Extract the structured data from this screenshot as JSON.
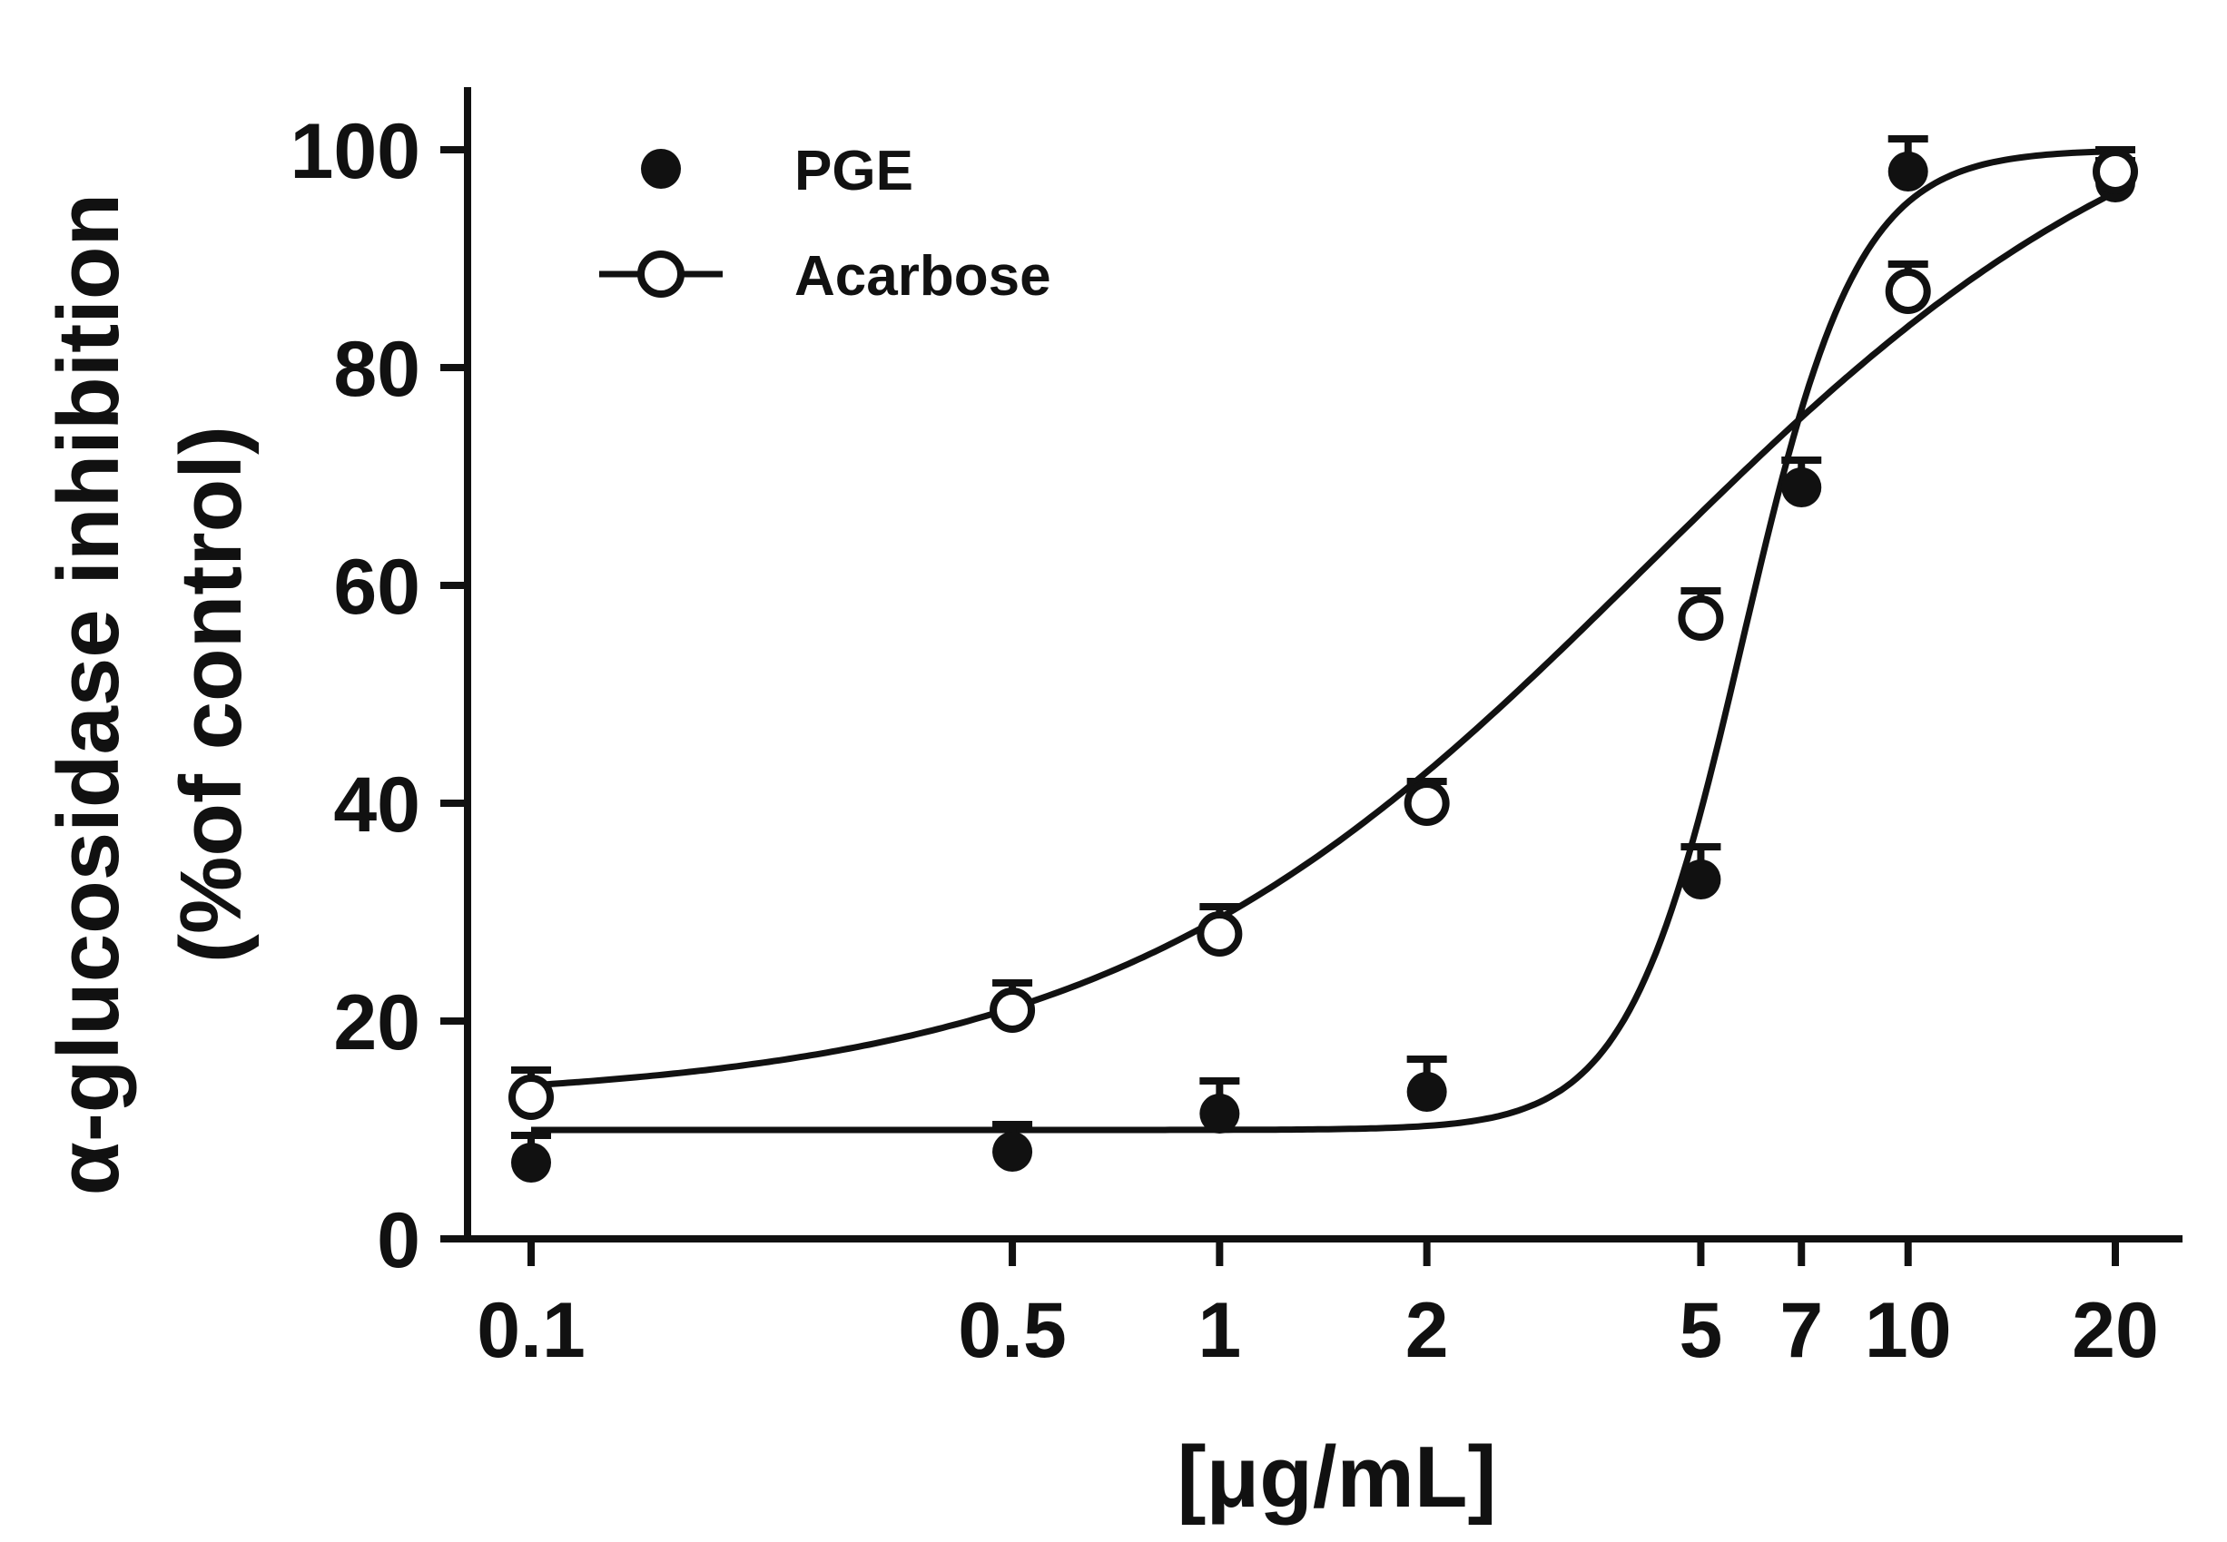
{
  "chart_data": {
    "type": "scatter",
    "x_scale": "log",
    "x_ticks": [
      0.1,
      0.5,
      1,
      2,
      5,
      7,
      10,
      20
    ],
    "x_tick_labels": [
      "0.1",
      "0.5",
      "1",
      "2",
      "5",
      "7",
      "10",
      "20"
    ],
    "y_ticks": [
      0,
      20,
      40,
      60,
      80,
      100
    ],
    "y_tick_labels": [
      "0",
      "20",
      "40",
      "60",
      "80",
      "100"
    ],
    "ylim": [
      0,
      100
    ],
    "xlabel": "[μg/mL]",
    "ylabel_line1": "α-glucosidase inhibition",
    "ylabel_line2": "(%of control)",
    "legend_position": "top-left",
    "grid": false,
    "series": [
      {
        "name": "PGE",
        "marker": "filled-circle",
        "color": "#111111",
        "x": [
          0.1,
          0.5,
          1,
          2,
          5,
          7,
          10,
          20
        ],
        "y": [
          7,
          8,
          11.5,
          13.5,
          33,
          69,
          98,
          97
        ],
        "error": [
          2.5,
          2.5,
          3,
          3,
          3,
          2.5,
          3,
          2
        ],
        "fit": {
          "bottom": 10,
          "top": 100,
          "logEC50": 0.76,
          "hill": 5.2
        }
      },
      {
        "name": "Acarbose",
        "marker": "open-circle",
        "color": "#111111",
        "x": [
          0.1,
          0.5,
          1,
          2,
          5,
          10,
          20
        ],
        "y": [
          13,
          21,
          28,
          40,
          57,
          87,
          98
        ],
        "error": [
          2.5,
          2.5,
          2.5,
          2,
          2.5,
          2.5,
          2
        ],
        "fit": {
          "bottom": 12.5,
          "top": 111,
          "logEC50": 0.62,
          "hill": 1.1
        }
      }
    ]
  }
}
